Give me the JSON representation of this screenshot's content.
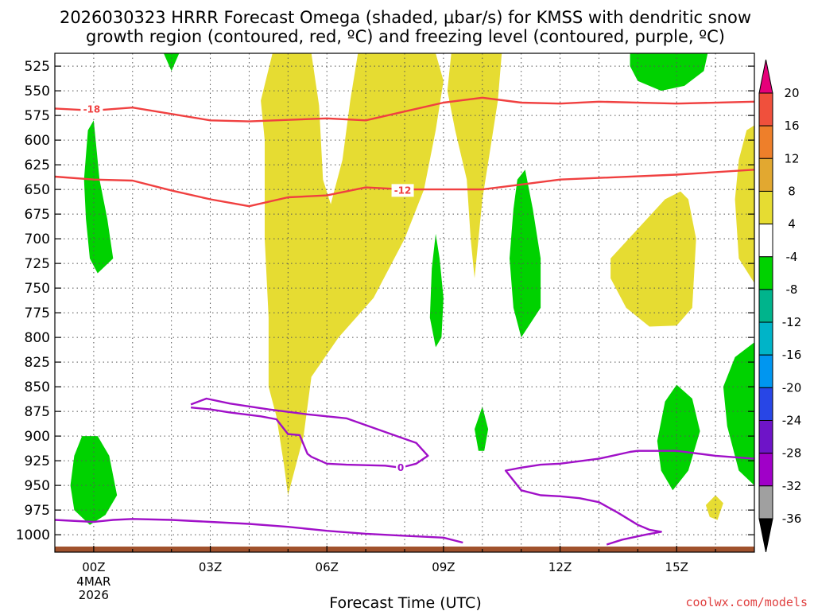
{
  "chart_data": {
    "type": "heatmap",
    "title_lines": [
      "2026030323 HRRR Forecast Omega (shaded, μbar/s) for KMSS with dendritic snow",
      "growth region (contoured, red, ºC) and freezing level (contoured, purple, ºC)"
    ],
    "xlabel": "Forecast Time (UTC)",
    "x_ticks": [
      {
        "label": "00Z",
        "hour": 0,
        "extra": [
          "4MAR",
          "2026"
        ]
      },
      {
        "label": "03Z",
        "hour": 3
      },
      {
        "label": "06Z",
        "hour": 6
      },
      {
        "label": "09Z",
        "hour": 9
      },
      {
        "label": "12Z",
        "hour": 12
      },
      {
        "label": "15Z",
        "hour": 15
      }
    ],
    "xlim_hours": [
      -1,
      17
    ],
    "y_ticks": [
      525,
      550,
      575,
      600,
      625,
      650,
      675,
      700,
      725,
      750,
      775,
      800,
      825,
      850,
      875,
      900,
      925,
      950,
      975,
      1000
    ],
    "ylim_hpa": [
      512,
      1012
    ],
    "ylabel": "",
    "grid": true,
    "colorbar": {
      "labels": [
        20,
        16,
        12,
        8,
        4,
        -4,
        -8,
        -12,
        -16,
        -20,
        -24,
        -28,
        -32,
        -36
      ],
      "bins": [
        {
          "range": [
            20,
            999
          ],
          "color": "#e6007a",
          "shape": "up-triangle"
        },
        {
          "range": [
            16,
            20
          ],
          "color": "#f0503c"
        },
        {
          "range": [
            12,
            16
          ],
          "color": "#ee7f2a"
        },
        {
          "range": [
            8,
            12
          ],
          "color": "#e2a830"
        },
        {
          "range": [
            4,
            8
          ],
          "color": "#e6dc32"
        },
        {
          "range": [
            -4,
            4
          ],
          "color": "#ffffff"
        },
        {
          "range": [
            -8,
            -4
          ],
          "color": "#00d200"
        },
        {
          "range": [
            -12,
            -8
          ],
          "color": "#00b48c"
        },
        {
          "range": [
            -16,
            -12
          ],
          "color": "#00b4c8"
        },
        {
          "range": [
            -20,
            -16
          ],
          "color": "#0096f0"
        },
        {
          "range": [
            -24,
            -20
          ],
          "color": "#2846e6"
        },
        {
          "range": [
            -28,
            -24
          ],
          "color": "#6e14c8"
        },
        {
          "range": [
            -32,
            -28
          ],
          "color": "#a000c8"
        },
        {
          "range": [
            -36,
            -32
          ],
          "color": "#a0a0a0"
        },
        {
          "range": [
            -999,
            -36
          ],
          "color": "#000000",
          "shape": "down-triangle"
        }
      ]
    },
    "shading": [
      {
        "name": "yellow-omega-main",
        "level": 4,
        "color": "#e6dc32",
        "points": [
          [
            4.6,
            512
          ],
          [
            5.6,
            512
          ],
          [
            5.8,
            565
          ],
          [
            5.9,
            640
          ],
          [
            6.1,
            665
          ],
          [
            6.4,
            620
          ],
          [
            6.6,
            560
          ],
          [
            6.8,
            512
          ],
          [
            8.8,
            512
          ],
          [
            9.0,
            540
          ],
          [
            8.8,
            590
          ],
          [
            8.5,
            650
          ],
          [
            8.0,
            700
          ],
          [
            7.2,
            760
          ],
          [
            6.3,
            800
          ],
          [
            5.6,
            840
          ],
          [
            5.4,
            900
          ],
          [
            5.0,
            960
          ],
          [
            4.9,
            930
          ],
          [
            4.7,
            880
          ],
          [
            4.5,
            850
          ],
          [
            4.5,
            780
          ],
          [
            4.4,
            700
          ],
          [
            4.4,
            600
          ],
          [
            4.3,
            560
          ]
        ]
      },
      {
        "name": "yellow-omega-center",
        "level": 4,
        "color": "#e6dc32",
        "points": [
          [
            9.5,
            512
          ],
          [
            10.5,
            512
          ],
          [
            10.4,
            560
          ],
          [
            10.2,
            610
          ],
          [
            10.0,
            660
          ],
          [
            9.9,
            700
          ],
          [
            9.8,
            740
          ],
          [
            9.7,
            700
          ],
          [
            9.6,
            640
          ],
          [
            9.3,
            590
          ],
          [
            9.1,
            550
          ],
          [
            9.2,
            512
          ]
        ]
      },
      {
        "name": "yellow-omega-right",
        "level": 4,
        "color": "#e6dc32",
        "points": [
          [
            13.3,
            720
          ],
          [
            14.0,
            690
          ],
          [
            14.7,
            660
          ],
          [
            15.1,
            652
          ],
          [
            15.3,
            660
          ],
          [
            15.5,
            700
          ],
          [
            15.4,
            770
          ],
          [
            15.0,
            788
          ],
          [
            14.3,
            789
          ],
          [
            13.7,
            770
          ],
          [
            13.3,
            740
          ]
        ]
      },
      {
        "name": "yellow-omega-edge",
        "level": 4,
        "color": "#e6dc32",
        "points": [
          [
            17.0,
            585
          ],
          [
            17.0,
            745
          ],
          [
            16.6,
            720
          ],
          [
            16.5,
            660
          ],
          [
            16.6,
            620
          ],
          [
            16.8,
            590
          ]
        ]
      },
      {
        "name": "yellow-omega-small",
        "level": 4,
        "color": "#e6dc32",
        "points": [
          [
            15.75,
            970
          ],
          [
            16.0,
            960
          ],
          [
            16.2,
            968
          ],
          [
            16.05,
            985
          ],
          [
            15.85,
            982
          ]
        ]
      },
      {
        "name": "green-omega-left",
        "level": -4,
        "color": "#00d200",
        "points": [
          [
            -0.15,
            590
          ],
          [
            0.0,
            580
          ],
          [
            0.15,
            640
          ],
          [
            0.35,
            680
          ],
          [
            0.5,
            720
          ],
          [
            0.1,
            735
          ],
          [
            -0.1,
            720
          ],
          [
            -0.2,
            680
          ],
          [
            -0.25,
            640
          ]
        ]
      },
      {
        "name": "green-omega-topleft",
        "level": -4,
        "color": "#00d200",
        "points": [
          [
            1.8,
            512
          ],
          [
            2.2,
            512
          ],
          [
            2.0,
            530
          ]
        ]
      },
      {
        "name": "green-omega-topright",
        "level": -4,
        "color": "#00d200",
        "points": [
          [
            13.8,
            512
          ],
          [
            15.8,
            512
          ],
          [
            15.7,
            530
          ],
          [
            15.2,
            545
          ],
          [
            14.6,
            550
          ],
          [
            14.0,
            540
          ],
          [
            13.8,
            525
          ]
        ]
      },
      {
        "name": "green-omega-mid",
        "level": -4,
        "color": "#00d200",
        "points": [
          [
            8.8,
            695
          ],
          [
            8.9,
            720
          ],
          [
            9.0,
            760
          ],
          [
            8.95,
            800
          ],
          [
            8.8,
            810
          ],
          [
            8.65,
            780
          ],
          [
            8.7,
            730
          ]
        ]
      },
      {
        "name": "green-omega-column",
        "level": -4,
        "color": "#00d200",
        "points": [
          [
            10.9,
            640
          ],
          [
            11.1,
            630
          ],
          [
            11.3,
            670
          ],
          [
            11.5,
            720
          ],
          [
            11.5,
            770
          ],
          [
            11.0,
            800
          ],
          [
            10.8,
            770
          ],
          [
            10.7,
            720
          ],
          [
            10.8,
            670
          ]
        ]
      },
      {
        "name": "green-omega-small",
        "level": -4,
        "color": "#00d200",
        "points": [
          [
            9.8,
            893
          ],
          [
            10.0,
            870
          ],
          [
            10.15,
            893
          ],
          [
            10.05,
            915
          ],
          [
            9.9,
            915
          ]
        ]
      },
      {
        "name": "green-omega-right",
        "level": -4,
        "color": "#00d200",
        "points": [
          [
            15.0,
            848
          ],
          [
            15.4,
            862
          ],
          [
            15.6,
            895
          ],
          [
            15.3,
            935
          ],
          [
            14.9,
            955
          ],
          [
            14.6,
            935
          ],
          [
            14.5,
            905
          ],
          [
            14.7,
            865
          ]
        ]
      },
      {
        "name": "green-omega-edge",
        "level": -4,
        "color": "#00d200",
        "points": [
          [
            17.0,
            805
          ],
          [
            17.0,
            950
          ],
          [
            16.6,
            935
          ],
          [
            16.3,
            890
          ],
          [
            16.2,
            850
          ],
          [
            16.5,
            820
          ]
        ]
      },
      {
        "name": "green-omega-bottomleft",
        "level": -4,
        "color": "#00d200",
        "points": [
          [
            -0.5,
            920
          ],
          [
            -0.3,
            900
          ],
          [
            0.1,
            900
          ],
          [
            0.4,
            920
          ],
          [
            0.6,
            960
          ],
          [
            0.3,
            980
          ],
          [
            -0.1,
            990
          ],
          [
            -0.5,
            975
          ],
          [
            -0.6,
            950
          ]
        ]
      }
    ],
    "contours": [
      {
        "name": "dgz-minus18",
        "label": "-18",
        "color": "#f04040",
        "points": [
          [
            -1,
            568
          ],
          [
            0,
            570
          ],
          [
            1,
            567
          ],
          [
            3,
            580
          ],
          [
            4,
            581
          ],
          [
            6,
            578
          ],
          [
            7,
            580
          ],
          [
            9,
            562
          ],
          [
            10,
            557
          ],
          [
            11,
            562
          ],
          [
            12,
            563
          ],
          [
            13,
            561
          ],
          [
            15,
            563
          ],
          [
            17,
            561
          ]
        ],
        "label_pos": [
          -0.05,
          569
        ]
      },
      {
        "name": "dgz-minus12",
        "label": "-12",
        "color": "#f04040",
        "points": [
          [
            -1,
            637
          ],
          [
            0,
            640
          ],
          [
            1,
            641
          ],
          [
            2,
            651
          ],
          [
            3,
            660
          ],
          [
            4,
            667
          ],
          [
            5,
            658
          ],
          [
            6,
            656
          ],
          [
            7,
            648
          ],
          [
            8,
            650
          ],
          [
            9,
            650
          ],
          [
            10,
            650
          ],
          [
            11,
            645
          ],
          [
            12,
            640
          ],
          [
            15,
            635
          ],
          [
            17,
            630
          ]
        ],
        "label_pos": [
          7.95,
          651
        ]
      },
      {
        "name": "freezing-level-0",
        "label": "0",
        "color": "#a010c8",
        "points": [
          [
            2.5,
            868
          ],
          [
            2.9,
            862
          ],
          [
            3.5,
            867
          ],
          [
            4.5,
            873
          ],
          [
            5.5,
            878
          ],
          [
            6.5,
            882
          ],
          [
            8.3,
            907
          ],
          [
            8.6,
            920
          ],
          [
            8.3,
            928
          ],
          [
            7.9,
            932
          ],
          [
            7.5,
            930
          ],
          [
            6.5,
            929
          ],
          [
            6.0,
            928
          ],
          [
            5.6,
            921
          ],
          [
            5.5,
            918
          ],
          [
            5.3,
            899
          ],
          [
            5.0,
            898
          ],
          [
            4.7,
            883
          ],
          [
            4.3,
            880
          ],
          [
            3.5,
            876
          ],
          [
            3.0,
            873
          ],
          [
            2.5,
            871
          ]
        ],
        "label_pos": [
          7.9,
          932
        ]
      },
      {
        "name": "freezing-level-surface",
        "label": "",
        "color": "#a010c8",
        "points": [
          [
            -1,
            985
          ],
          [
            0,
            987
          ],
          [
            0.5,
            985
          ],
          [
            1,
            984
          ],
          [
            2,
            985
          ],
          [
            3,
            987
          ],
          [
            4,
            989
          ],
          [
            5,
            992
          ],
          [
            6,
            996
          ],
          [
            7,
            999
          ],
          [
            8,
            1001
          ],
          [
            9,
            1003
          ],
          [
            9.5,
            1008
          ]
        ]
      },
      {
        "name": "freezing-level-right",
        "label": "",
        "color": "#a010c8",
        "points": [
          [
            17,
            923
          ],
          [
            16,
            920
          ],
          [
            15,
            915
          ],
          [
            14,
            915
          ],
          [
            13.8,
            916
          ],
          [
            13,
            923
          ],
          [
            12,
            928
          ],
          [
            11.5,
            929
          ],
          [
            11,
            932
          ],
          [
            10.6,
            935
          ],
          [
            10.8,
            945
          ],
          [
            11,
            955
          ],
          [
            11.5,
            960
          ],
          [
            12,
            961
          ],
          [
            12.5,
            963
          ],
          [
            13,
            967
          ],
          [
            13.5,
            978
          ],
          [
            14,
            990
          ],
          [
            14.3,
            995
          ],
          [
            14.6,
            997
          ],
          [
            14.2,
            1000
          ],
          [
            13.6,
            1005
          ],
          [
            13.2,
            1010
          ]
        ]
      }
    ]
  },
  "credit": {
    "text": "coolwx.com/models",
    "color": "#e04040"
  }
}
